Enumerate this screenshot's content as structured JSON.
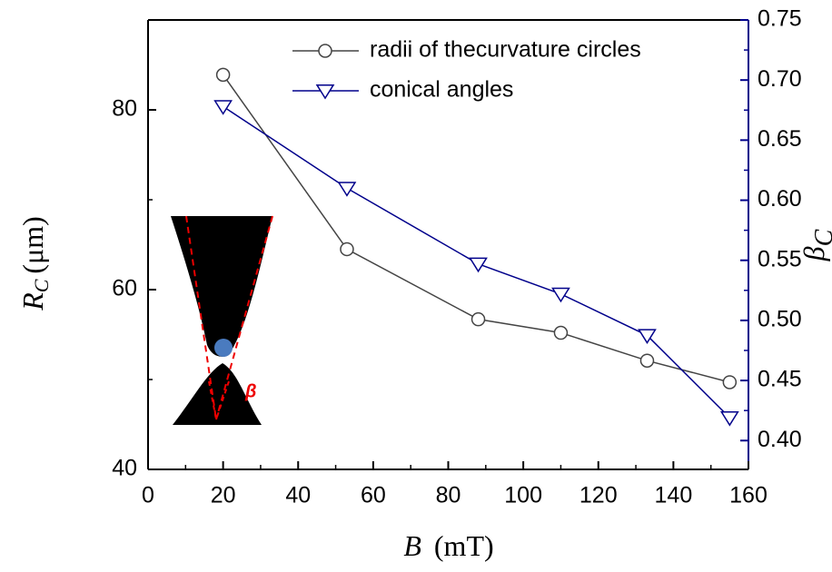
{
  "chart_data": {
    "type": "line",
    "xlabel": [
      "B",
      "(mT)"
    ],
    "ylabel": [
      "R",
      "C",
      "(μm)"
    ],
    "y2label": [
      "β",
      "C"
    ],
    "inset_label": "β",
    "x": [
      20,
      53,
      88,
      110,
      133,
      155
    ],
    "xlim": [
      0,
      160
    ],
    "xticks": [
      0,
      20,
      40,
      60,
      80,
      100,
      120,
      140,
      160
    ],
    "ylim": [
      40,
      90
    ],
    "yticks": [
      40,
      60,
      80
    ],
    "y2lim": [
      0.376,
      0.75
    ],
    "y2ticks": [
      {
        "value": 0.4,
        "label": "0.40"
      },
      0.45,
      {
        "value": 0.5,
        "label": "0.50"
      },
      0.55,
      {
        "value": 0.6,
        "label": "0.60"
      },
      0.65,
      {
        "value": 0.7,
        "label": "0.70"
      },
      0.75
    ],
    "y2color": "#00008b",
    "legend": "upper right",
    "series": [
      {
        "name": "radii of thecurvature circles",
        "color": "#444444",
        "marker": "circle",
        "values": [
          83.9,
          64.5,
          56.7,
          55.2,
          52.1,
          49.7
        ]
      },
      {
        "name": "conical angles",
        "color": "#00008b",
        "marker": "triangle-down",
        "axis": "y2",
        "values": [
          0.678,
          0.61,
          0.547,
          0.522,
          0.4875,
          0.419
        ]
      }
    ]
  }
}
